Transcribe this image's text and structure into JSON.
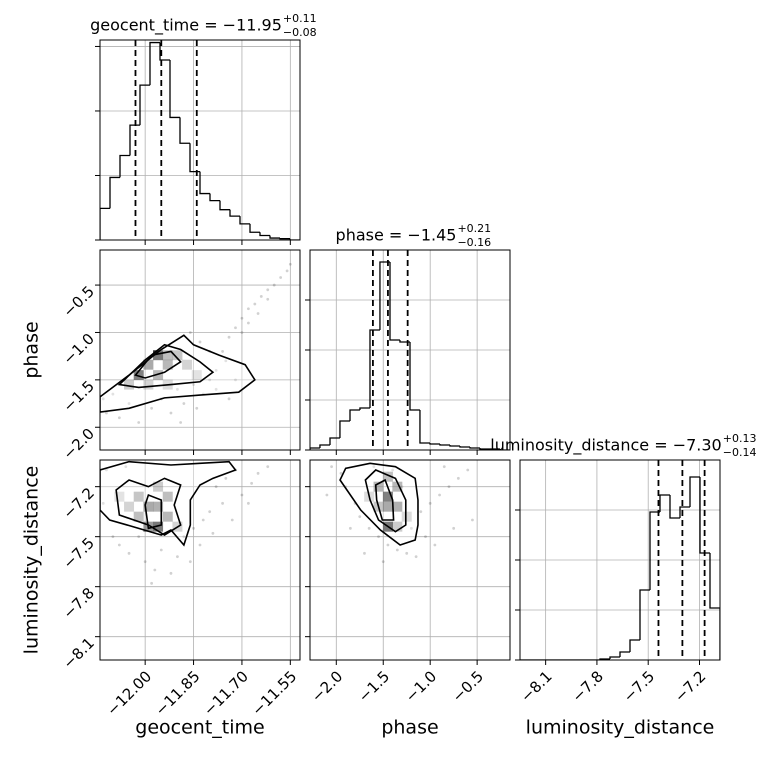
{
  "chart_data": [
    {
      "type": "histogram",
      "title": {
        "text": "geocent_time = −11.95",
        "upper": "+0.11",
        "lower": "−0.08"
      },
      "bins": [
        -12.14,
        -12.109,
        -12.078,
        -12.047,
        -12.016,
        -11.985,
        -11.954,
        -11.923,
        -11.892,
        -11.861,
        -11.83,
        -11.799,
        -11.768,
        -11.737,
        -11.706,
        -11.675,
        -11.644,
        -11.613,
        -11.582,
        -11.551,
        -11.52
      ],
      "values": [
        0.49,
        0.97,
        1.31,
        1.78,
        2.4,
        3.06,
        2.79,
        1.9,
        1.5,
        1.06,
        0.72,
        0.61,
        0.47,
        0.37,
        0.25,
        0.12,
        0.07,
        0.03,
        0.02,
        0
      ],
      "quantiles": [
        -12.03,
        -11.95,
        -11.84
      ],
      "color": "#000000",
      "xlim": [
        -12.14,
        -11.52
      ],
      "xticks": [
        -12.0,
        -11.85,
        -11.7,
        -11.55
      ],
      "ylim": [
        0,
        3.1
      ],
      "yticks": [
        0,
        1,
        2,
        3
      ],
      "grid": true
    },
    {
      "type": "scatter",
      "ylabel": "phase",
      "points": {
        "x": [
          -12.12,
          -12.08,
          -12.05,
          -12.02,
          -11.98,
          -11.95,
          -11.92,
          -11.9,
          -11.88,
          -11.85,
          -11.82,
          -11.8,
          -11.78,
          -11.76,
          -11.74,
          -11.72,
          -11.7,
          -11.68,
          -11.66,
          -11.64,
          -11.62,
          -11.6,
          -11.58,
          -11.56,
          -11.55,
          -11.65,
          -11.7,
          -11.75,
          -11.8,
          -11.83,
          -11.86,
          -11.89,
          -11.84,
          -11.78,
          -12.1,
          -12.13,
          -11.72,
          -11.68,
          -11.62,
          -11.74
        ],
        "y": [
          -1.85,
          -1.9,
          -1.75,
          -1.95,
          -1.8,
          -1.7,
          -1.85,
          -1.6,
          -1.75,
          -1.55,
          -1.65,
          -1.5,
          -1.4,
          -1.2,
          -1.05,
          -0.95,
          -0.85,
          -0.75,
          -0.7,
          -0.62,
          -0.55,
          -0.5,
          -0.42,
          -0.35,
          -0.28,
          -0.8,
          -1.0,
          -1.3,
          -1.2,
          -1.1,
          -1.0,
          -1.95,
          -1.8,
          -1.6,
          -1.65,
          -1.7,
          -1.5,
          -0.9,
          -0.65,
          -1.7
        ]
      },
      "cells": {
        "x": [
          -12.02,
          -11.96,
          -11.99,
          -11.93,
          -11.96,
          -12.05,
          -11.9,
          -11.87,
          -11.93,
          -11.84,
          -11.99,
          -11.93
        ],
        "y": [
          -1.45,
          -1.24,
          -1.34,
          -1.34,
          -1.45,
          -1.55,
          -1.24,
          -1.34,
          -1.55,
          -1.45,
          -1.55,
          -1.24
        ],
        "density": [
          0.9,
          0.95,
          0.6,
          0.5,
          0.5,
          0.35,
          0.4,
          0.3,
          0.25,
          0.2,
          0.3,
          0.45
        ]
      },
      "cell_width": 0.031,
      "cell_height": 0.105,
      "contours": [
        {
          "x": [
            -12.14,
            -12.05,
            -11.95,
            -11.88,
            -11.85,
            -11.77,
            -11.69,
            -11.66,
            -11.71,
            -11.83,
            -11.94,
            -12.05,
            -12.14
          ],
          "y": [
            -1.68,
            -1.45,
            -1.18,
            -1.03,
            -1.13,
            -1.24,
            -1.34,
            -1.5,
            -1.63,
            -1.66,
            -1.69,
            -1.8,
            -1.84
          ]
        },
        {
          "x": [
            -12.08,
            -12.0,
            -11.94,
            -11.89,
            -11.83,
            -11.79,
            -11.83,
            -11.92,
            -12.02
          ],
          "y": [
            -1.55,
            -1.29,
            -1.13,
            -1.18,
            -1.31,
            -1.42,
            -1.52,
            -1.55,
            -1.58
          ]
        },
        {
          "x": [
            -12.03,
            -11.98,
            -11.92,
            -11.89,
            -11.94,
            -12.0
          ],
          "y": [
            -1.45,
            -1.24,
            -1.2,
            -1.31,
            -1.42,
            -1.48
          ]
        }
      ],
      "color": "#000000",
      "xlim": [
        -12.14,
        -11.52
      ],
      "xticks": [
        -12.0,
        -11.85,
        -11.7,
        -11.55
      ],
      "ylim": [
        -2.24,
        -0.13
      ],
      "yticks": [
        {
          "value": -0.5,
          "label": "−0.5"
        },
        {
          "value": -1.0,
          "label": "−1.0"
        },
        {
          "value": -1.5,
          "label": "−1.5"
        },
        {
          "value": -2.0,
          "label": "−2.0"
        }
      ],
      "grid": true
    },
    {
      "type": "histogram",
      "title": {
        "text": "phase = −1.45",
        "upper": "+0.21",
        "lower": "−0.16"
      },
      "bins": [
        -2.28,
        -2.174,
        -2.067,
        -1.961,
        -1.854,
        -1.748,
        -1.641,
        -1.535,
        -1.428,
        -1.322,
        -1.215,
        -1.109,
        -1.002,
        -0.896,
        -0.789,
        -0.683,
        -0.576,
        -0.47,
        -0.363,
        -0.257,
        -0.15
      ],
      "values": [
        0.04,
        0.1,
        0.24,
        0.58,
        0.8,
        0.84,
        2.4,
        3.76,
        2.2,
        2.16,
        0.8,
        0.14,
        0.12,
        0.1,
        0.08,
        0.06,
        0.04,
        0.02,
        0.02,
        0
      ],
      "quantiles": [
        -1.61,
        -1.45,
        -1.24
      ],
      "color": "#000000",
      "xlim": [
        -2.28,
        -0.15
      ],
      "xticks": [
        -2.0,
        -1.5,
        -1.0,
        -0.5
      ],
      "ylim": [
        0,
        4
      ],
      "yticks": [
        0,
        1,
        2,
        3
      ],
      "grid": true
    },
    {
      "type": "scatter",
      "xlabel": "geocent_time",
      "ylabel": "luminosity_distance",
      "points": {
        "x": [
          -12.12,
          -12.08,
          -12.05,
          -12.0,
          -11.97,
          -11.95,
          -11.9,
          -11.88,
          -11.85,
          -11.82,
          -11.8,
          -11.78,
          -11.75,
          -11.72,
          -11.7,
          -11.68,
          -11.65,
          -11.62,
          -12.1,
          -12.13,
          -11.92,
          -12.02,
          -11.76,
          -11.83,
          -11.73,
          -11.86,
          -12.06,
          -11.67,
          -11.79,
          -11.98
        ],
        "y": [
          -7.1,
          -7.55,
          -7.6,
          -7.65,
          -7.7,
          -7.58,
          -7.62,
          -7.5,
          -7.45,
          -7.4,
          -7.35,
          -7.2,
          -7.15,
          -7.1,
          -7.25,
          -7.3,
          -7.12,
          -7.08,
          -7.5,
          -7.3,
          -7.72,
          -7.5,
          -7.3,
          -7.55,
          -7.4,
          -7.65,
          -7.08,
          -7.18,
          -7.48,
          -7.78
        ]
      },
      "cells": {
        "x": [
          -11.96,
          -11.99,
          -12.02,
          -11.93,
          -11.96,
          -12.05,
          -11.93,
          -12.02,
          -11.9,
          -12.08,
          -11.96,
          -11.99
        ],
        "y": [
          -7.44,
          -7.32,
          -7.26,
          -7.26,
          -7.2,
          -7.32,
          -7.38,
          -7.38,
          -7.44,
          -7.26,
          -7.32,
          -7.44
        ],
        "density": [
          0.95,
          0.6,
          0.4,
          0.45,
          0.35,
          0.3,
          0.5,
          0.45,
          0.3,
          0.2,
          0.55,
          0.7
        ]
      },
      "cell_width": 0.031,
      "cell_height": 0.06,
      "contours": [
        {
          "x": [
            -12.14,
            -12.05,
            -11.92,
            -11.83,
            -11.74,
            -11.72,
            -11.79,
            -11.83,
            -11.86,
            -11.86,
            -11.88,
            -11.92,
            -11.95,
            -12.02,
            -12.11,
            -12.14
          ],
          "y": [
            -7.1,
            -7.05,
            -7.07,
            -7.06,
            -7.05,
            -7.1,
            -7.15,
            -7.19,
            -7.28,
            -7.43,
            -7.55,
            -7.46,
            -7.49,
            -7.45,
            -7.4,
            -7.34
          ]
        },
        {
          "x": [
            -12.09,
            -12.05,
            -11.99,
            -11.94,
            -11.89,
            -11.91,
            -11.89,
            -11.94,
            -11.99,
            -12.08
          ],
          "y": [
            -7.22,
            -7.16,
            -7.2,
            -7.15,
            -7.19,
            -7.31,
            -7.43,
            -7.49,
            -7.43,
            -7.37
          ]
        },
        {
          "x": [
            -12.0,
            -11.99,
            -11.95,
            -11.95,
            -11.99
          ],
          "y": [
            -7.31,
            -7.25,
            -7.28,
            -7.43,
            -7.45
          ]
        }
      ],
      "color": "#000000",
      "xlim": [
        -12.14,
        -11.52
      ],
      "xticks": [
        {
          "value": -12.0,
          "label": "−12.00"
        },
        {
          "value": -11.85,
          "label": "−11.85"
        },
        {
          "value": -11.7,
          "label": "−11.70"
        },
        {
          "value": -11.55,
          "label": "−11.55"
        }
      ],
      "ylim": [
        -8.24,
        -7.04
      ],
      "yticks": [
        {
          "value": -7.2,
          "label": "−7.2"
        },
        {
          "value": -7.5,
          "label": "−7.5"
        },
        {
          "value": -7.8,
          "label": "−7.8"
        },
        {
          "value": -8.1,
          "label": "−8.1"
        }
      ],
      "grid": true
    },
    {
      "type": "scatter",
      "xlabel": "phase",
      "points": {
        "x": [
          -2.05,
          -1.95,
          -1.9,
          -1.8,
          -1.75,
          -1.65,
          -1.55,
          -1.45,
          -1.35,
          -1.25,
          -1.15,
          -1.2,
          -1.1,
          -1.0,
          -0.9,
          -0.8,
          -0.7,
          -0.6,
          -0.55,
          -0.75,
          -1.4,
          -1.6,
          -1.3,
          -1.05,
          -0.95,
          -1.7,
          -1.85,
          -2.1,
          -0.85,
          -1.5
        ],
        "y": [
          -7.08,
          -7.12,
          -7.2,
          -7.3,
          -7.38,
          -7.45,
          -7.5,
          -7.55,
          -7.58,
          -7.6,
          -7.62,
          -7.45,
          -7.35,
          -7.3,
          -7.25,
          -7.2,
          -7.15,
          -7.1,
          -7.4,
          -7.45,
          -7.1,
          -7.08,
          -7.2,
          -7.5,
          -7.55,
          -7.6,
          -7.45,
          -7.25,
          -7.08,
          -7.65
        ]
      },
      "cells": {
        "x": [
          -1.45,
          -1.45,
          -1.55,
          -1.45,
          -1.35,
          -1.35,
          -1.55,
          -1.35,
          -1.45,
          -1.65,
          -1.25
        ],
        "y": [
          -7.44,
          -7.26,
          -7.2,
          -7.14,
          -7.2,
          -7.32,
          -7.32,
          -7.44,
          -7.32,
          -7.26,
          -7.38
        ],
        "density": [
          0.95,
          0.9,
          0.5,
          0.45,
          0.5,
          0.55,
          0.4,
          0.35,
          0.6,
          0.25,
          0.25
        ]
      },
      "cell_width": 0.1065,
      "cell_height": 0.06,
      "contours": [
        {
          "x": [
            -1.96,
            -1.9,
            -1.64,
            -1.37,
            -1.16,
            -1.13,
            -1.13,
            -1.16,
            -1.32,
            -1.53,
            -1.74
          ],
          "y": [
            -7.16,
            -7.09,
            -7.06,
            -7.08,
            -7.15,
            -7.28,
            -7.43,
            -7.52,
            -7.55,
            -7.46,
            -7.34
          ]
        },
        {
          "x": [
            -1.69,
            -1.58,
            -1.37,
            -1.26,
            -1.26,
            -1.37,
            -1.55,
            -1.64
          ],
          "y": [
            -7.16,
            -7.1,
            -7.15,
            -7.28,
            -7.43,
            -7.47,
            -7.4,
            -7.28
          ]
        },
        {
          "x": [
            -1.58,
            -1.48,
            -1.4,
            -1.39,
            -1.51,
            -1.57
          ],
          "y": [
            -7.19,
            -7.16,
            -7.28,
            -7.4,
            -7.4,
            -7.28
          ]
        }
      ],
      "color": "#000000",
      "xlim": [
        -2.28,
        -0.15
      ],
      "xticks": [
        {
          "value": -2.0,
          "label": "−2.0"
        },
        {
          "value": -1.5,
          "label": "−1.5"
        },
        {
          "value": -1.0,
          "label": "−1.0"
        },
        {
          "value": -0.5,
          "label": "−0.5"
        }
      ],
      "ylim": [
        -8.24,
        -7.04
      ],
      "yticks": [
        -7.2,
        -7.5,
        -7.8,
        -8.1
      ],
      "grid": true
    },
    {
      "type": "histogram",
      "xlabel": "luminosity_distance",
      "title": {
        "text": "luminosity_distance = −7.30",
        "upper": "+0.13",
        "lower": "−0.14"
      },
      "bins": [
        -8.25,
        -8.1915,
        -8.133,
        -8.0745,
        -8.016,
        -7.9575,
        -7.899,
        -7.8405,
        -7.782,
        -7.7235,
        -7.665,
        -7.6065,
        -7.548,
        -7.4895,
        -7.431,
        -7.3725,
        -7.314,
        -7.2555,
        -7.197,
        -7.1385,
        -7.08
      ],
      "values": [
        0,
        0,
        0,
        0,
        0,
        0,
        0,
        0,
        0.02,
        0.06,
        0.16,
        0.4,
        1.4,
        2.96,
        3.3,
        2.84,
        3.06,
        3.66,
        2.14,
        1.04
      ],
      "quantiles": [
        -7.44,
        -7.3,
        -7.17
      ],
      "color": "#000000",
      "xlim": [
        -8.25,
        -7.08
      ],
      "xticks": [
        {
          "value": -8.1,
          "label": "−8.1"
        },
        {
          "value": -7.8,
          "label": "−7.8"
        },
        {
          "value": -7.5,
          "label": "−7.5"
        },
        {
          "value": -7.2,
          "label": "−7.2"
        }
      ],
      "ylim": [
        0,
        4
      ],
      "yticks": [
        0,
        1,
        2,
        3
      ],
      "grid": true
    }
  ]
}
